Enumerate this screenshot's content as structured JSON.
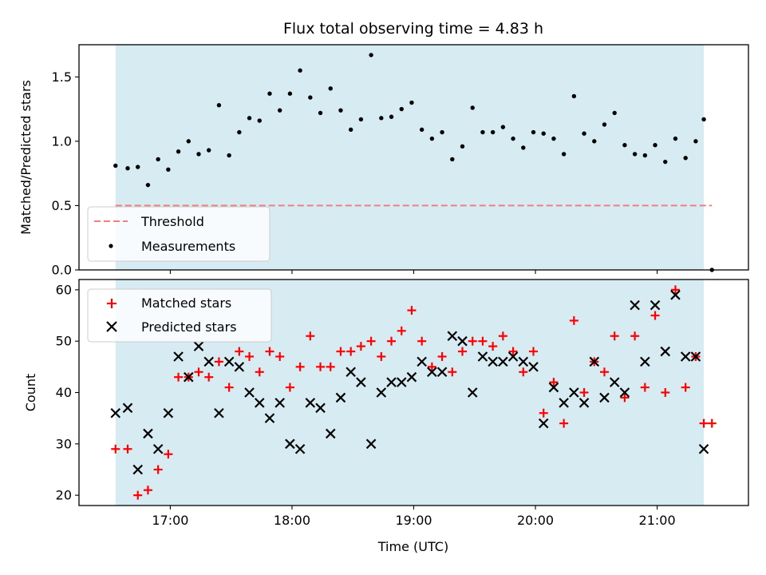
{
  "chart_data": [
    {
      "type": "scatter",
      "title": "Flux total observing time = 4.83 h",
      "xlabel": "",
      "ylabel": "Matched/Predicted stars",
      "xlim": [
        "16:15",
        "21:45"
      ],
      "ylim": [
        0,
        1.75
      ],
      "yticks": [
        "0.0",
        "0.5",
        "1.0",
        "1.5"
      ],
      "observing_window": [
        "16:33",
        "21:23"
      ],
      "threshold": {
        "name": "Threshold",
        "value": 0.5,
        "color": "#f08080",
        "style": "dashed"
      },
      "legend": {
        "position": "lower-left",
        "entries": [
          "Threshold",
          "Measurements"
        ]
      },
      "series": [
        {
          "name": "Measurements",
          "color": "#000000",
          "marker": "dot",
          "x": [
            "16:33",
            "16:39",
            "16:44",
            "16:49",
            "16:54",
            "16:59",
            "17:04",
            "17:09",
            "17:14",
            "17:19",
            "17:24",
            "17:29",
            "17:34",
            "17:39",
            "17:44",
            "17:49",
            "17:54",
            "17:59",
            "18:04",
            "18:09",
            "18:14",
            "18:19",
            "18:24",
            "18:29",
            "18:34",
            "18:39",
            "18:44",
            "18:49",
            "18:54",
            "18:59",
            "19:04",
            "19:09",
            "19:14",
            "19:19",
            "19:24",
            "19:29",
            "19:34",
            "19:39",
            "19:44",
            "19:49",
            "19:54",
            "19:59",
            "20:04",
            "20:09",
            "20:14",
            "20:19",
            "20:24",
            "20:29",
            "20:34",
            "20:39",
            "20:44",
            "20:49",
            "20:54",
            "20:59",
            "21:04",
            "21:09",
            "21:14",
            "21:19",
            "21:23",
            "21:27"
          ],
          "y": [
            0.81,
            0.79,
            0.8,
            0.66,
            0.86,
            0.78,
            0.92,
            1.0,
            0.9,
            0.93,
            1.28,
            0.89,
            1.07,
            1.18,
            1.16,
            1.37,
            1.24,
            1.37,
            1.55,
            1.34,
            1.22,
            1.41,
            1.24,
            1.09,
            1.17,
            1.67,
            1.18,
            1.19,
            1.25,
            1.3,
            1.09,
            1.02,
            1.07,
            0.86,
            0.96,
            1.26,
            1.07,
            1.07,
            1.11,
            1.02,
            0.95,
            1.07,
            1.06,
            1.02,
            0.9,
            1.35,
            1.06,
            1.0,
            1.13,
            1.22,
            0.97,
            0.9,
            0.89,
            0.97,
            0.84,
            1.02,
            0.87,
            1.0,
            1.17,
            0.0
          ]
        }
      ]
    },
    {
      "type": "scatter",
      "title": "",
      "xlabel": "Time (UTC)",
      "ylabel": "Count",
      "xlim": [
        "16:15",
        "21:45"
      ],
      "ylim": [
        18,
        62
      ],
      "xticks": [
        "17:00",
        "18:00",
        "19:00",
        "20:00",
        "21:00"
      ],
      "yticks": [
        "20",
        "30",
        "40",
        "50",
        "60"
      ],
      "observing_window": [
        "16:33",
        "21:23"
      ],
      "legend": {
        "position": "upper-left",
        "entries": [
          "Matched stars",
          "Predicted stars"
        ]
      },
      "series": [
        {
          "name": "Matched stars",
          "color": "#ff0000",
          "marker": "plus",
          "x": [
            "16:33",
            "16:39",
            "16:44",
            "16:49",
            "16:54",
            "16:59",
            "17:04",
            "17:09",
            "17:14",
            "17:19",
            "17:24",
            "17:29",
            "17:34",
            "17:39",
            "17:44",
            "17:49",
            "17:54",
            "17:59",
            "18:04",
            "18:09",
            "18:14",
            "18:19",
            "18:24",
            "18:29",
            "18:34",
            "18:39",
            "18:44",
            "18:49",
            "18:54",
            "18:59",
            "19:04",
            "19:09",
            "19:14",
            "19:19",
            "19:24",
            "19:29",
            "19:34",
            "19:39",
            "19:44",
            "19:49",
            "19:54",
            "19:59",
            "20:04",
            "20:09",
            "20:14",
            "20:19",
            "20:24",
            "20:29",
            "20:34",
            "20:39",
            "20:44",
            "20:49",
            "20:54",
            "20:59",
            "21:04",
            "21:09",
            "21:14",
            "21:19",
            "21:23",
            "21:27"
          ],
          "y": [
            29,
            29,
            20,
            21,
            25,
            28,
            43,
            43,
            44,
            43,
            46,
            41,
            48,
            47,
            44,
            48,
            47,
            41,
            45,
            51,
            45,
            45,
            48,
            48,
            49,
            50,
            47,
            50,
            52,
            56,
            50,
            45,
            47,
            44,
            48,
            50,
            50,
            49,
            51,
            48,
            44,
            48,
            36,
            42,
            34,
            54,
            40,
            46,
            44,
            51,
            39,
            51,
            41,
            55,
            40,
            60,
            41,
            47,
            34,
            34
          ]
        },
        {
          "name": "Predicted stars",
          "color": "#000000",
          "marker": "x",
          "x": [
            "16:33",
            "16:39",
            "16:44",
            "16:49",
            "16:54",
            "16:59",
            "17:04",
            "17:09",
            "17:14",
            "17:19",
            "17:24",
            "17:29",
            "17:34",
            "17:39",
            "17:44",
            "17:49",
            "17:54",
            "17:59",
            "18:04",
            "18:09",
            "18:14",
            "18:19",
            "18:24",
            "18:29",
            "18:34",
            "18:39",
            "18:44",
            "18:49",
            "18:54",
            "18:59",
            "19:04",
            "19:09",
            "19:14",
            "19:19",
            "19:24",
            "19:29",
            "19:34",
            "19:39",
            "19:44",
            "19:49",
            "19:54",
            "19:59",
            "20:04",
            "20:09",
            "20:14",
            "20:19",
            "20:24",
            "20:29",
            "20:34",
            "20:39",
            "20:44",
            "20:49",
            "20:54",
            "20:59",
            "21:04",
            "21:09",
            "21:14",
            "21:19",
            "21:23"
          ],
          "y": [
            36,
            37,
            25,
            32,
            29,
            36,
            47,
            43,
            49,
            46,
            36,
            46,
            45,
            40,
            38,
            35,
            38,
            30,
            29,
            38,
            37,
            32,
            39,
            44,
            42,
            30,
            40,
            42,
            42,
            43,
            46,
            44,
            44,
            51,
            50,
            40,
            47,
            46,
            46,
            47,
            46,
            45,
            34,
            41,
            38,
            40,
            38,
            46,
            39,
            42,
            40,
            57,
            46,
            57,
            48,
            59,
            47,
            47,
            29
          ]
        }
      ]
    }
  ],
  "colors": {
    "observing_band": "#add8e6",
    "frame": "#000000",
    "legend_frame": "#cccccc"
  }
}
